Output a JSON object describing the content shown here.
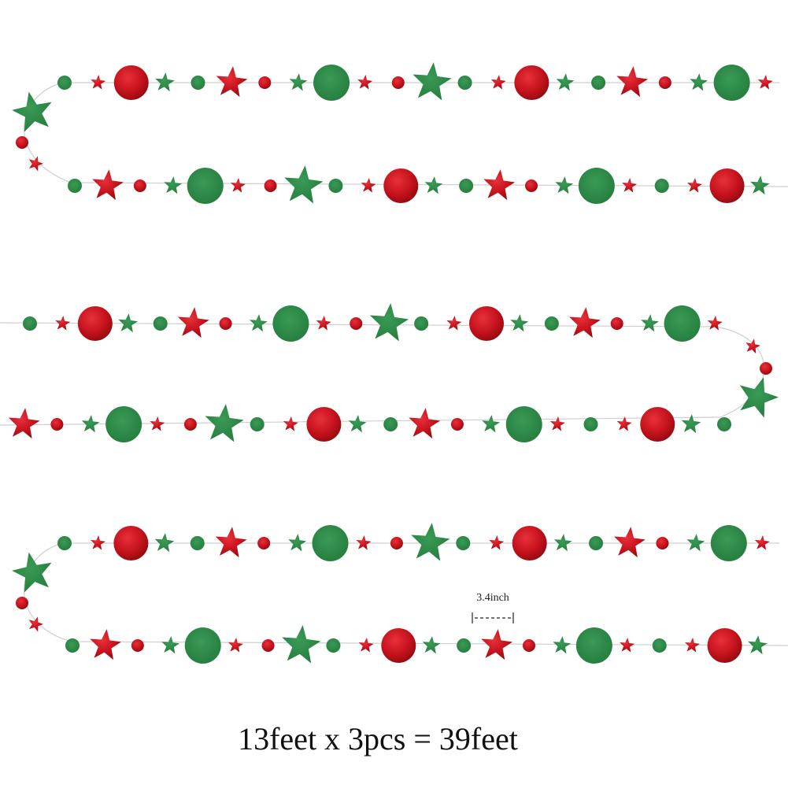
{
  "measure_label": "3.4inch",
  "caption": "13feet x 3pcs = 39feet"
}
